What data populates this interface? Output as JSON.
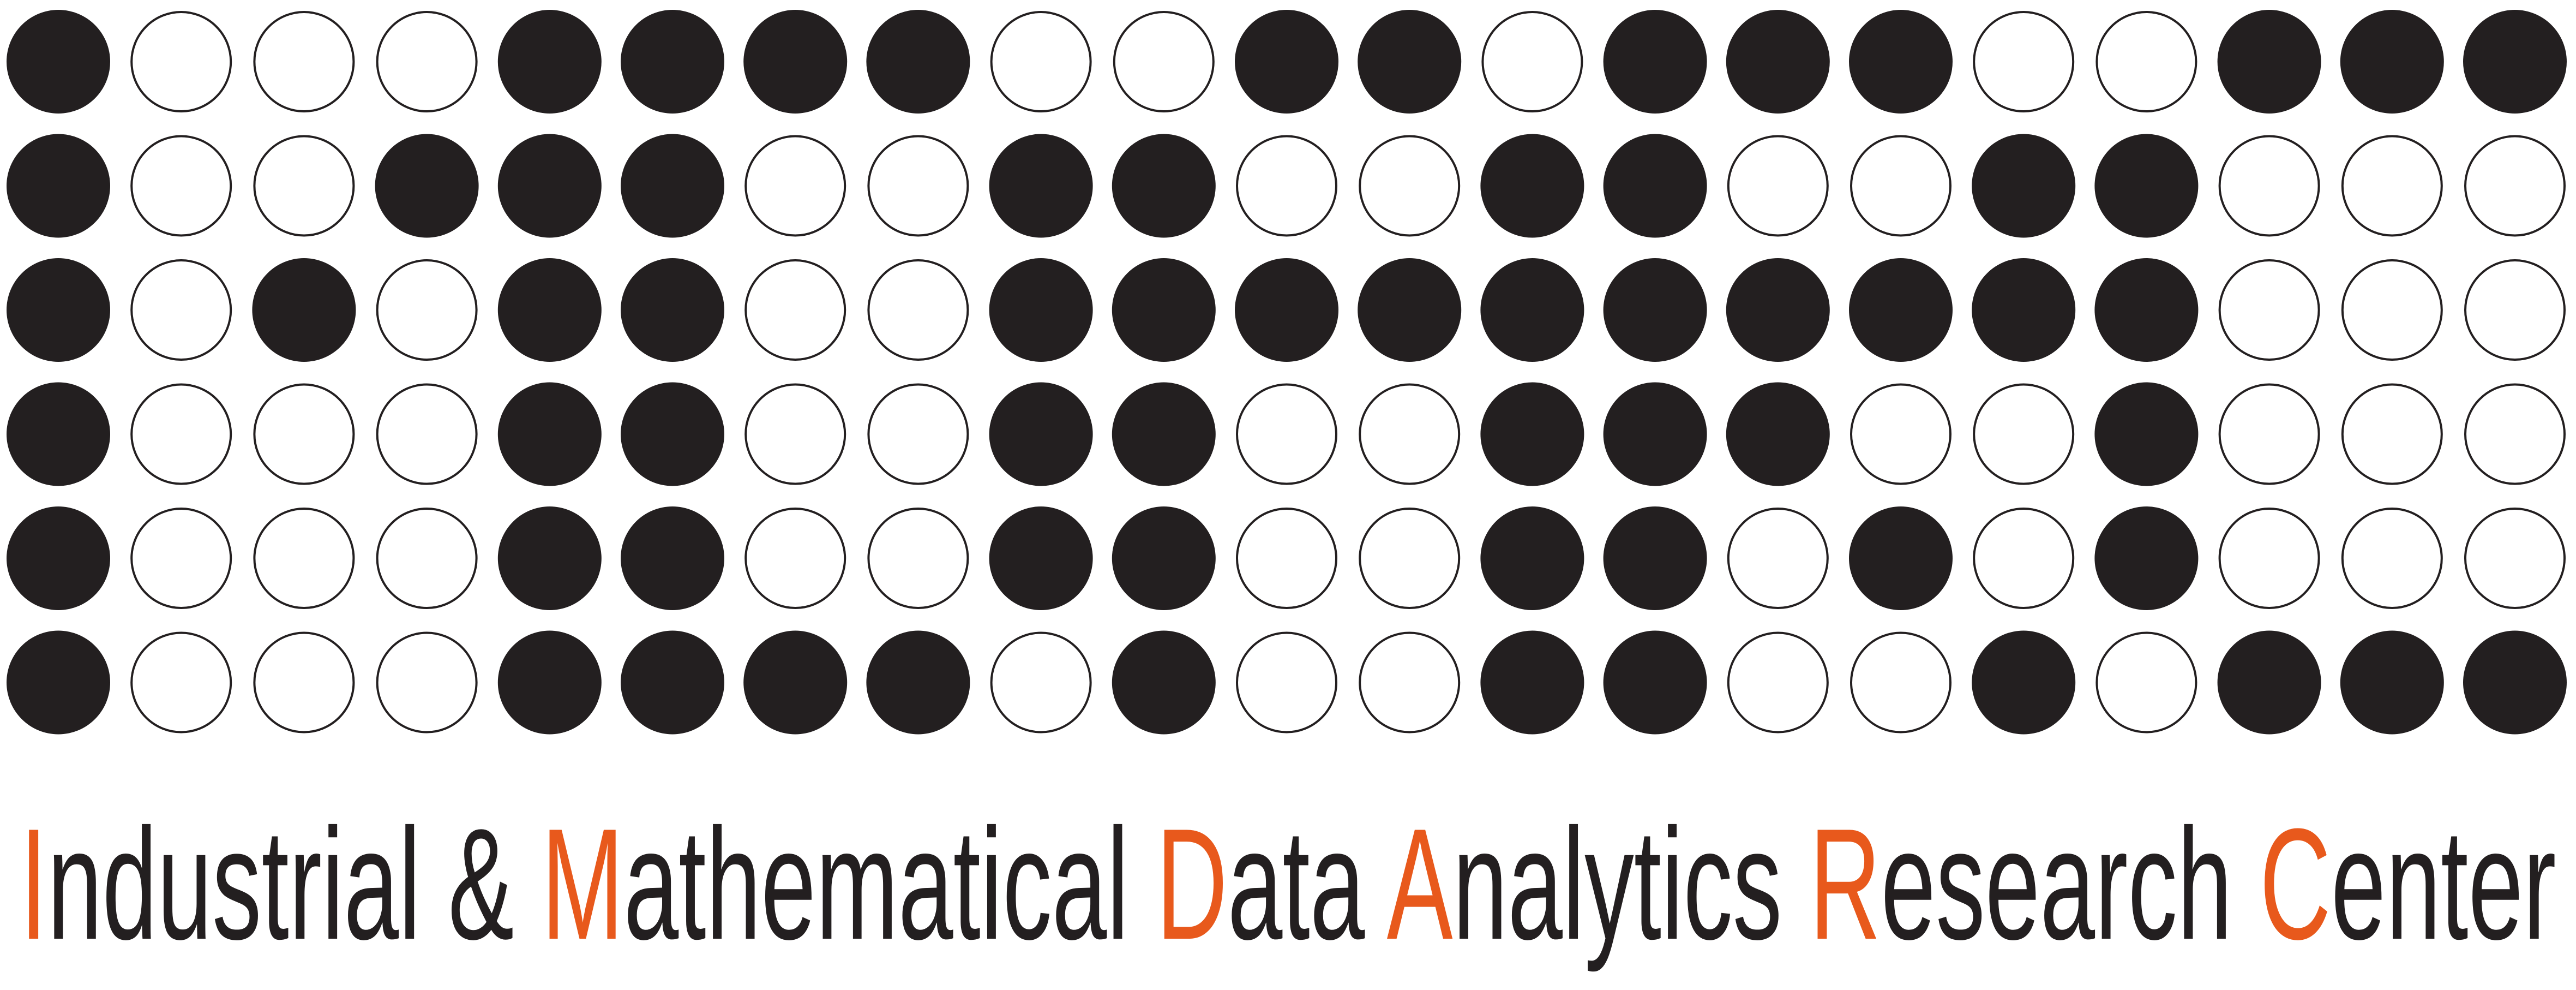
{
  "logo": {
    "wordmark": [
      {
        "initial": "I",
        "rest": "ndustrial &"
      },
      {
        "initial": "M",
        "rest": "athematical"
      },
      {
        "initial": "D",
        "rest": "ata"
      },
      {
        "initial": "A",
        "rest": "nalytics"
      },
      {
        "initial": "R",
        "rest": "esearch"
      },
      {
        "initial": "C",
        "rest": "enter"
      }
    ],
    "dot_pattern": [
      "100011110011011100111",
      "100111001100110011000",
      "101011001111111111000",
      "100011001100111001000",
      "100011001100110101000",
      "100011110100110010111"
    ],
    "colors": {
      "dot_fill": "#231f20",
      "text": "#231f20",
      "accent": "#e8591c",
      "background": "#ffffff"
    }
  }
}
